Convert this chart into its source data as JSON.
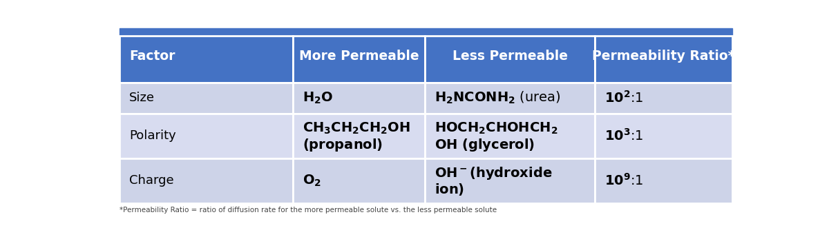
{
  "header_bg": "#4472C4",
  "header_text_color": "#FFFFFF",
  "row_bg_1": "#CDD3E8",
  "row_bg_2": "#D8DCF0",
  "row_bg_3": "#CDD3E8",
  "cell_border_color": "#FFFFFF",
  "top_bar_color": "#4472C4",
  "outer_bg": "#FFFFFF",
  "font_size_header": 13.5,
  "font_size_body": 13,
  "headers": [
    "Factor",
    "More Permeable",
    "Less Permeable",
    "Permeability Ratio*"
  ],
  "footnote": "*Permeability Ratio = ratio of diffusion rate for the more permeable solute vs. the less permeable solute",
  "footnote_color": "#444444",
  "footnote_size": 7.5,
  "figsize": [
    12.0,
    3.31
  ]
}
